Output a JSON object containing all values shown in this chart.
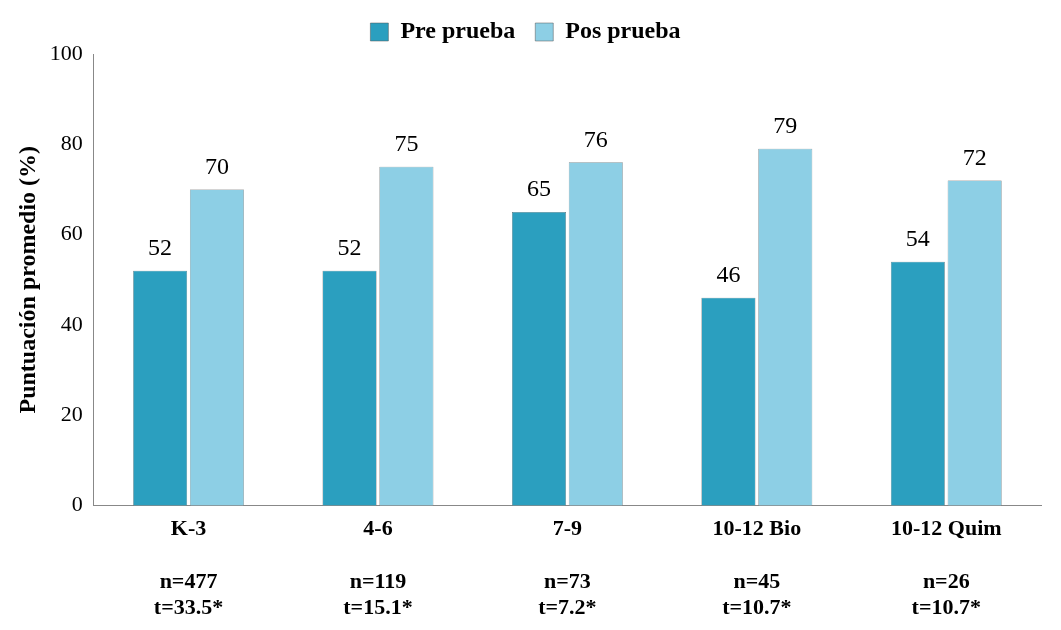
{
  "chart_data": {
    "type": "bar",
    "ylabel": "Puntuación promedio (%)",
    "categories": [
      "K-3\nn=477\nt=33.5*",
      "4-6\nn=119\nt=15.1*",
      "7-9\nn=73\nt=7.2*",
      "10-12 Bio\nn=45\nt=10.7*",
      "10-12 Quim\nn=26\nt=10.7*"
    ],
    "series": [
      {
        "name": "Pre prueba",
        "color": "#2b9fbf",
        "values": [
          52,
          52,
          65,
          46,
          54
        ]
      },
      {
        "name": "Pos prueba",
        "color": "#8dcfe5",
        "values": [
          70,
          75,
          76,
          79,
          72
        ]
      }
    ],
    "ylim": [
      0,
      100
    ],
    "yticks": [
      0,
      20,
      40,
      60,
      80,
      100
    ],
    "grid": false,
    "legend": "top",
    "data_labels": true
  }
}
